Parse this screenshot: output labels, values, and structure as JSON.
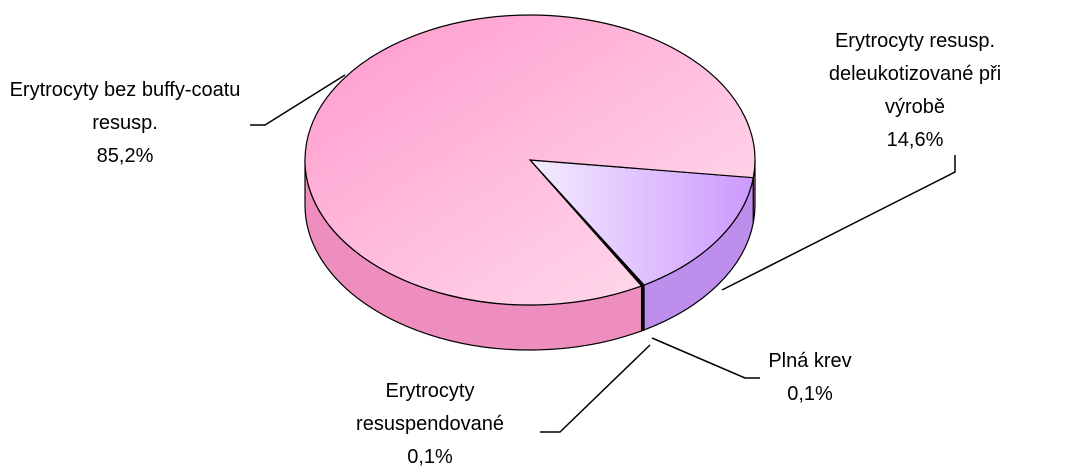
{
  "chart_data": {
    "type": "pie",
    "categories": [
      "Erytrocyty resusp. deleukotizované při výrobě",
      "Plná krev",
      "Erytrocyty resuspendované",
      "Erytrocyty bez buffy-coatu resusp."
    ],
    "values": [
      14.6,
      0.1,
      0.1,
      85.2
    ],
    "value_labels": [
      "14,6%",
      "0,1%",
      "0,1%",
      "85,2%"
    ],
    "colors": [
      "#cc99ff",
      "#993366",
      "#993366",
      "#ff99cc"
    ]
  }
}
